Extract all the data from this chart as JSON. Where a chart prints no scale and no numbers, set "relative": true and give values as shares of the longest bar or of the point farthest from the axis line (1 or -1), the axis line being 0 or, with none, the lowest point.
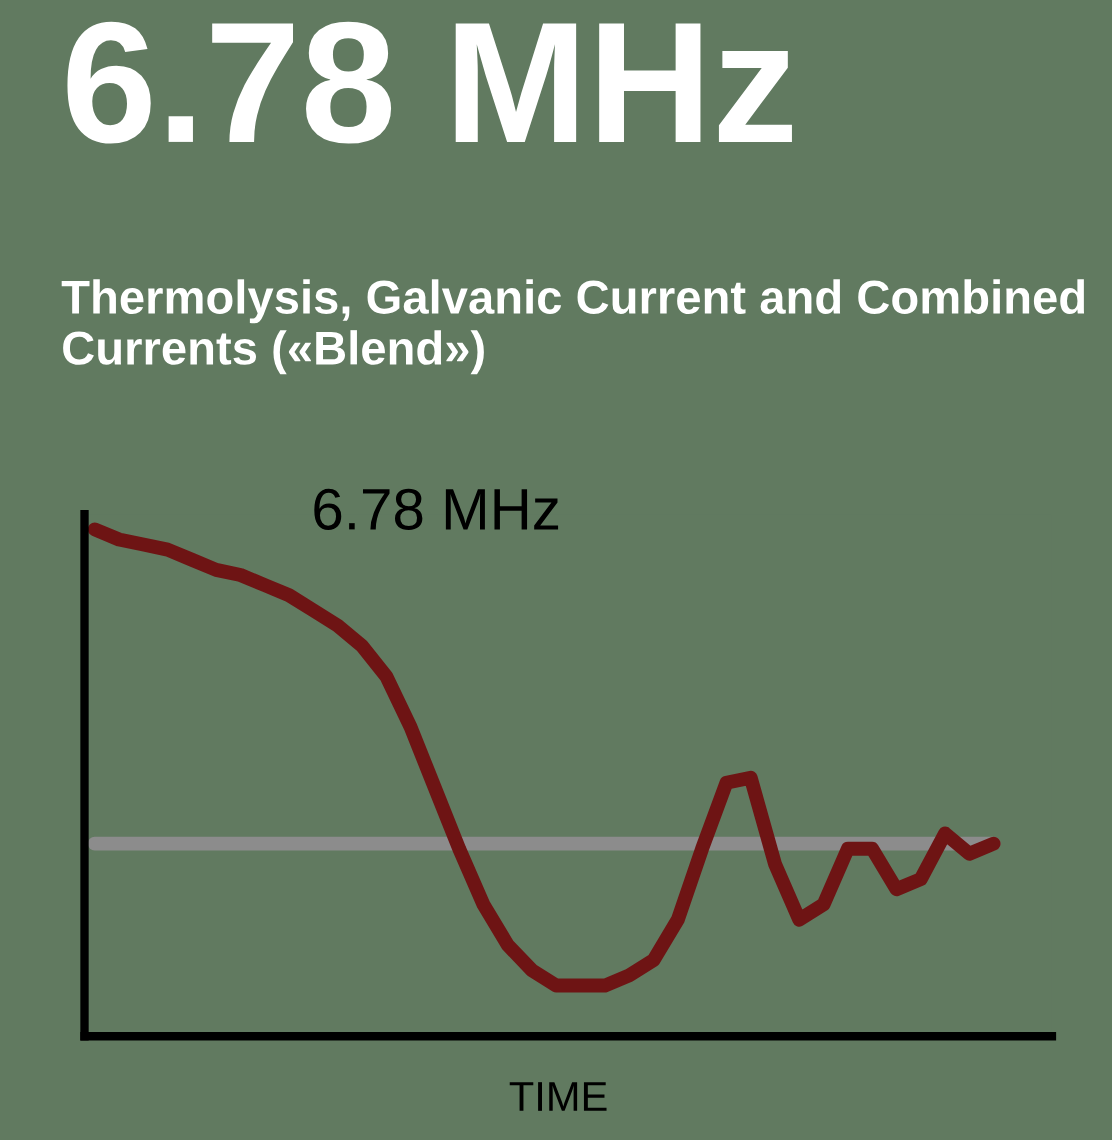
{
  "chart_data": {
    "type": "line",
    "title": "6.78 MHz",
    "subtitle": "Thermolysis, Galvanic Current and Combined Currents («Blend»)",
    "xlabel": "TIME",
    "annotations": [
      "6.78 MHz"
    ],
    "relative": true,
    "grid": false,
    "legend": false,
    "categories": [
      null,
      null,
      null,
      null,
      null,
      null,
      null,
      null,
      null,
      null,
      null,
      null,
      null,
      null,
      null,
      null,
      null,
      null,
      null,
      null,
      null,
      null,
      null,
      null,
      null,
      null,
      null,
      null,
      null,
      null,
      null,
      null,
      null,
      null,
      null,
      null,
      null,
      null
    ],
    "series": [
      {
        "color": "#8c8c8c",
        "values": [
          0.38,
          0.38,
          0.38,
          0.38,
          0.38,
          0.38,
          0.38,
          0.38,
          0.38,
          0.38,
          0.38,
          0.38,
          0.38,
          0.38,
          0.38,
          0.38,
          0.38,
          0.38,
          0.38,
          0.38,
          0.38,
          0.38,
          0.38,
          0.38,
          0.38,
          0.38,
          0.38,
          0.38,
          0.38,
          0.38,
          0.38,
          0.38,
          0.38,
          0.38,
          0.38,
          0.38,
          0.38,
          0.38
        ]
      },
      {
        "color": "#6e1414",
        "values": [
          1.0,
          0.98,
          0.97,
          0.96,
          0.94,
          0.92,
          0.91,
          0.89,
          0.87,
          0.84,
          0.81,
          0.77,
          0.71,
          0.61,
          0.49,
          0.37,
          0.26,
          0.18,
          0.13,
          0.1,
          0.1,
          0.1,
          0.12,
          0.15,
          0.23,
          0.37,
          0.5,
          0.51,
          0.34,
          0.23,
          0.26,
          0.37,
          0.37,
          0.29,
          0.31,
          0.4,
          0.36,
          0.38
        ]
      }
    ]
  }
}
